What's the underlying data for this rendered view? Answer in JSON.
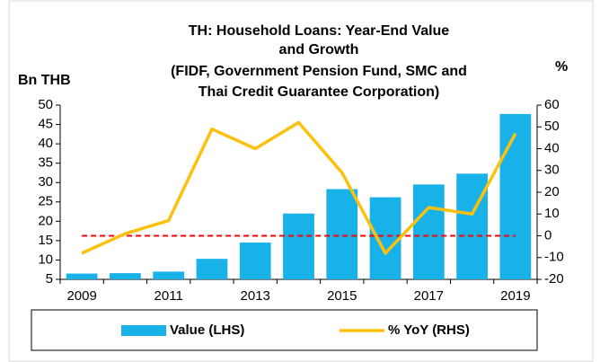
{
  "chart_data": {
    "type": "bar-line",
    "title": [
      "TH: Household Loans: Year-End Value",
      "and Growth",
      "(FIDF, Government Pension Fund, SMC and",
      "Thai Credit Guarantee Corporation)"
    ],
    "y_label": "Bn THB",
    "y2_label": "%",
    "categories": [
      "2009",
      null,
      "2011",
      null,
      "2013",
      null,
      "2015",
      null,
      "2017",
      null,
      "2019"
    ],
    "series": [
      {
        "name": "Value (LHS)",
        "type": "bar",
        "color": "#19b2e8",
        "values": [
          6.5,
          6.6,
          7.0,
          10.3,
          14.5,
          22.0,
          28.3,
          26.2,
          29.5,
          32.3,
          47.7
        ]
      },
      {
        "name": "% YoY (RHS)",
        "type": "line",
        "axis": "y2",
        "color": "#fcc00d",
        "values": [
          -8,
          1,
          7,
          49,
          40,
          52,
          29,
          -8,
          13,
          10,
          47
        ]
      }
    ],
    "reference_line": {
      "value": 0,
      "axis": "y2",
      "color": "#ff0000"
    },
    "ylim": [
      5,
      50
    ],
    "yticks": [
      5,
      10,
      15,
      20,
      25,
      30,
      35,
      40,
      45,
      50
    ],
    "y2lim": [
      -20,
      60
    ],
    "y2ticks": [
      -20,
      -10,
      0,
      10,
      20,
      30,
      40,
      50,
      60
    ],
    "legend": "bottom"
  }
}
